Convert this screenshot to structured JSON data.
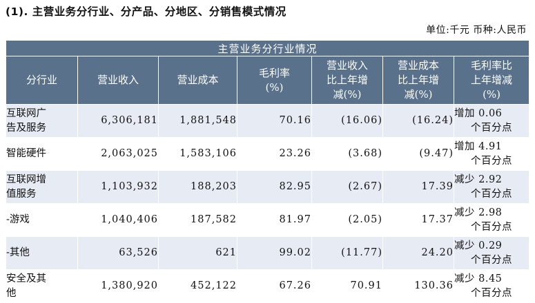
{
  "heading": "(1). 主营业务分行业、分产品、分地区、分销售模式情况",
  "unit_line": "单位:千元  币种:人民币",
  "table": {
    "title": "主营业务分行业情况",
    "headers": [
      "分行业",
      "营业收入",
      "营业成本",
      "毛利率\n(%)",
      "营业收入\n比上年增\n减(%)",
      "营业成本\n比上年增\n减(%)",
      "毛利率比\n上年增减\n(%)"
    ],
    "rows": [
      {
        "name": "互联网广\n告及服务",
        "revenue": "6,306,181",
        "cost": "1,881,548",
        "margin": "70.16",
        "rev_change": "(16.06)",
        "cost_change": "(16.24)",
        "margin_change": "增加 0.06",
        "margin_unit": "个百分点"
      },
      {
        "name": "智能硬件",
        "revenue": "2,063,025",
        "cost": "1,583,106",
        "margin": "23.26",
        "rev_change": "(3.68)",
        "cost_change": "(9.47)",
        "margin_change": "增加 4.91",
        "margin_unit": "个百分点"
      },
      {
        "name": "互联网增\n值服务",
        "revenue": "1,103,932",
        "cost": "188,203",
        "margin": "82.95",
        "rev_change": "(2.67)",
        "cost_change": "17.39",
        "margin_change": "减少 2.92",
        "margin_unit": "个百分点"
      },
      {
        "name": "-游戏",
        "revenue": "1,040,406",
        "cost": "187,582",
        "margin": "81.97",
        "rev_change": "(2.05)",
        "cost_change": "17.37",
        "margin_change": "减少 2.98",
        "margin_unit": "个百分点"
      },
      {
        "name": "-其他",
        "revenue": "63,526",
        "cost": "621",
        "margin": "99.02",
        "rev_change": "(11.77)",
        "cost_change": "24.20",
        "margin_change": "减少 0.29",
        "margin_unit": "个百分点"
      },
      {
        "name": "安全及其\n他",
        "revenue": "1,380,920",
        "cost": "452,122",
        "margin": "67.26",
        "rev_change": "70.91",
        "cost_change": "130.36",
        "margin_change": "减少 8.45",
        "margin_unit": "个百分点"
      }
    ]
  },
  "colors": {
    "header_bg": "#59718a",
    "row_tint": "#e7ebf3"
  }
}
